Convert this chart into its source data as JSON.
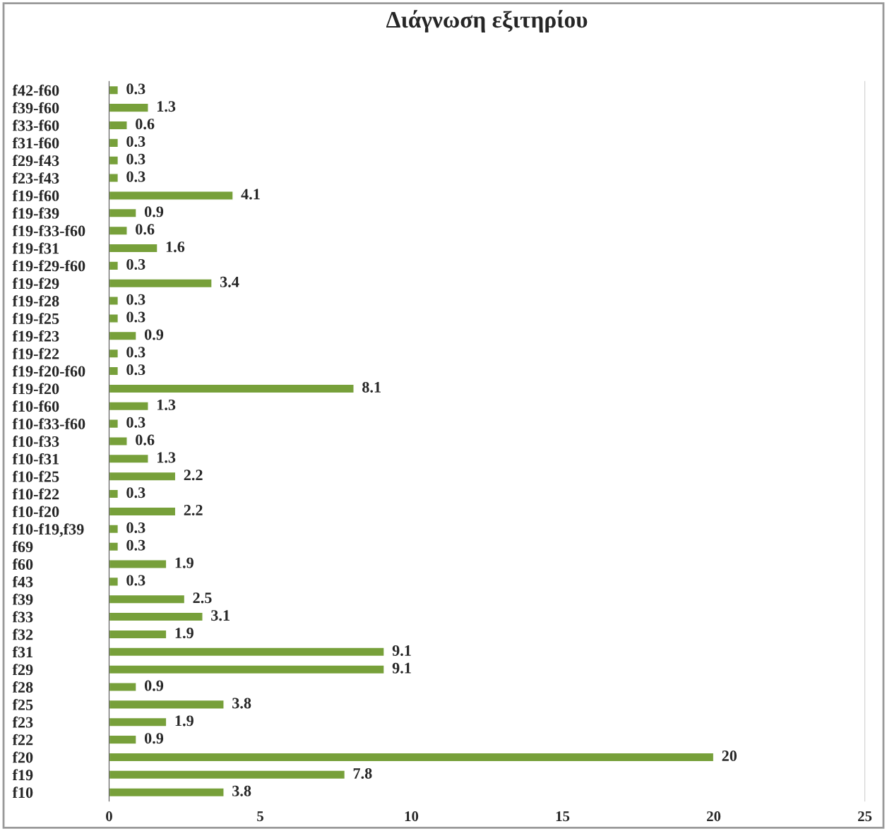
{
  "chart_data": {
    "type": "bar",
    "orientation": "horizontal",
    "title": "Διάγνωση εξιτηρίου",
    "categories": [
      "f42-f60",
      "f39-f60",
      "f33-f60",
      "f31-f60",
      "f29-f43",
      "f23-f43",
      "f19-f60",
      "f19-f39",
      "f19-f33-f60",
      "f19-f31",
      "f19-f29-f60",
      "f19-f29",
      "f19-f28",
      "f19-f25",
      "f19-f23",
      "f19-f22",
      "f19-f20-f60",
      "f19-f20",
      "f10-f60",
      "f10-f33-f60",
      "f10-f33",
      "f10-f31",
      "f10-f25",
      "f10-f22",
      "f10-f20",
      "f10-f19,f39",
      "f69",
      "f60",
      "f43",
      "f39",
      "f33",
      "f32",
      "f31",
      "f29",
      "f28",
      "f25",
      "f23",
      "f22",
      "f20",
      "f19",
      "f10"
    ],
    "values": [
      0.3,
      1.3,
      0.6,
      0.3,
      0.3,
      0.3,
      4.1,
      0.9,
      0.6,
      1.6,
      0.3,
      3.4,
      0.3,
      0.3,
      0.9,
      0.3,
      0.3,
      8.1,
      1.3,
      0.3,
      0.6,
      1.3,
      2.2,
      0.3,
      2.2,
      0.3,
      0.3,
      1.9,
      0.3,
      2.5,
      3.1,
      1.9,
      9.1,
      9.1,
      0.9,
      3.8,
      1.9,
      0.9,
      20,
      7.8,
      3.8
    ],
    "color": "#77a03a",
    "xlim": [
      0,
      25
    ],
    "xticks": [
      0,
      5,
      10,
      15,
      20,
      25
    ],
    "grid": false,
    "legend": false,
    "data_labels": true
  }
}
